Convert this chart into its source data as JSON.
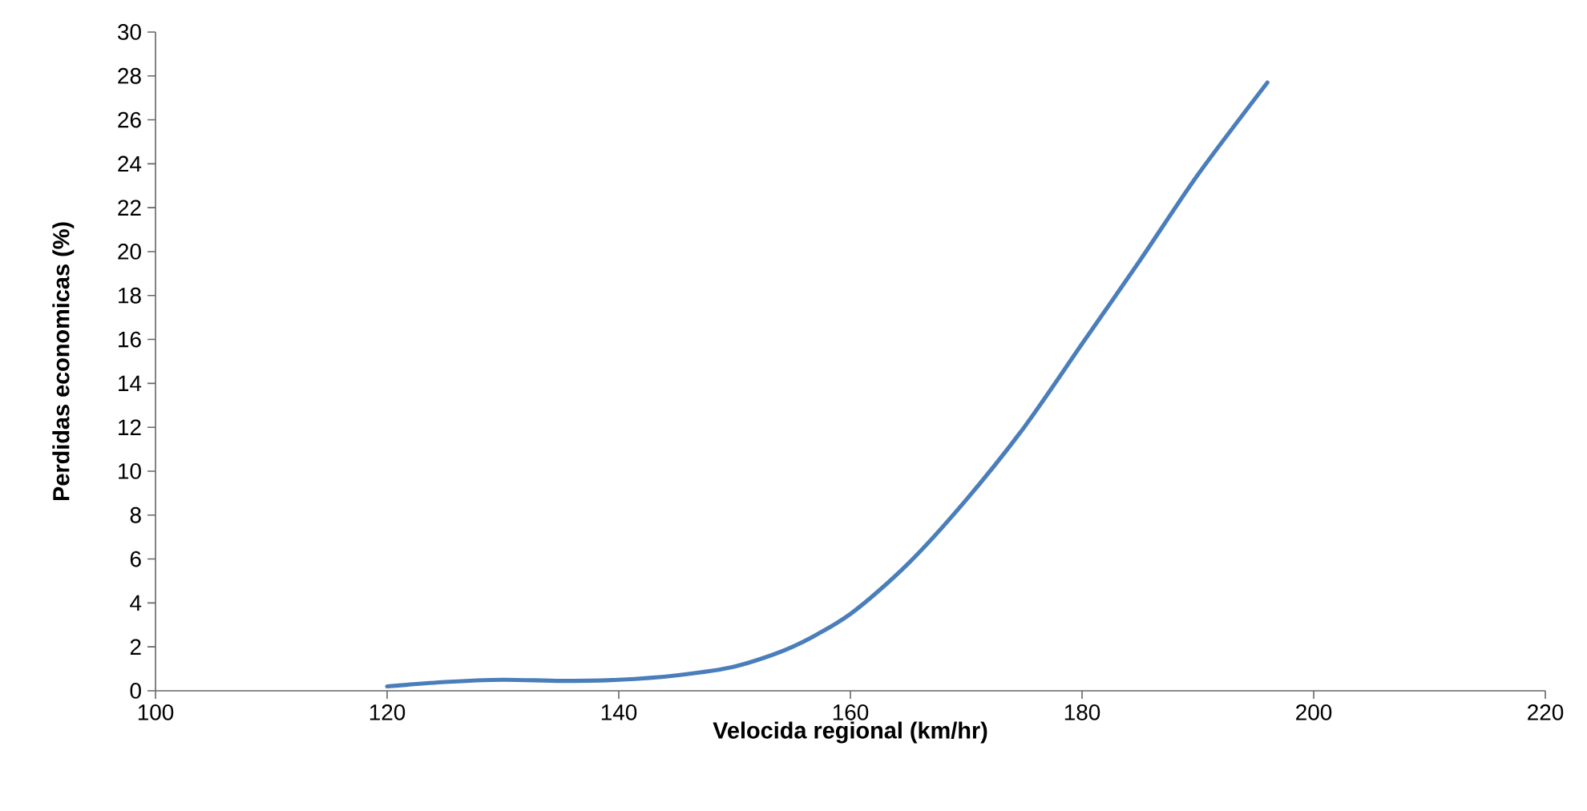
{
  "chart_data": {
    "type": "line",
    "xlabel": "Velocida regional (km/hr)",
    "ylabel": "Perdidas economicas (%)",
    "x": [
      120,
      125,
      130,
      135,
      140,
      145,
      150,
      155,
      160,
      165,
      170,
      175,
      180,
      185,
      190,
      196
    ],
    "series": [
      {
        "color": "#4a7ebb",
        "values": [
          0.2,
          0.4,
          0.5,
          0.45,
          0.5,
          0.7,
          1.1,
          2.0,
          3.5,
          5.8,
          8.7,
          12.0,
          15.8,
          19.6,
          23.5,
          27.7
        ]
      }
    ],
    "xlim": [
      100,
      220
    ],
    "xticks": [
      100,
      120,
      140,
      160,
      180,
      200,
      220
    ],
    "ylim": [
      0,
      30
    ],
    "yticks": [
      0,
      2,
      4,
      6,
      8,
      10,
      12,
      14,
      16,
      18,
      20,
      22,
      24,
      26,
      28,
      30
    ],
    "grid": false,
    "marker": "none",
    "line_style": "solid"
  }
}
